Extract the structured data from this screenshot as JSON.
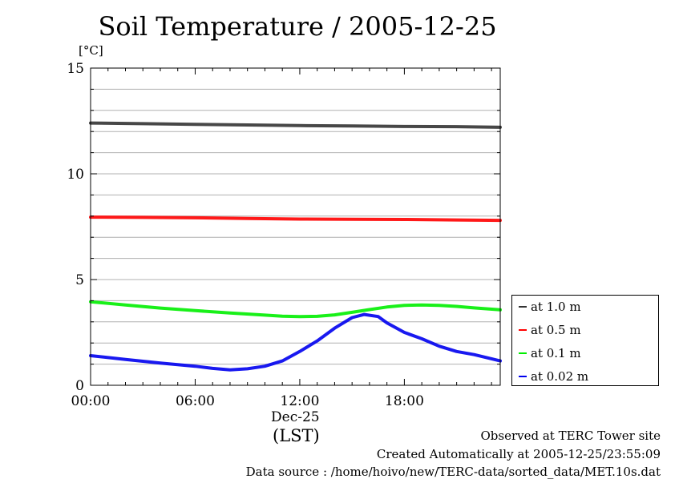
{
  "chart_data": {
    "type": "line",
    "title": "Soil Temperature / 2005-12-25",
    "ylabel": "[°C]",
    "xlabel": "(LST)",
    "xdate": "Dec-25",
    "ylim": [
      0,
      15
    ],
    "xlim": [
      0,
      23.5
    ],
    "yticks": [
      0,
      5,
      10,
      15
    ],
    "xticks": [
      {
        "value": 0,
        "label": "00:00"
      },
      {
        "value": 6,
        "label": "06:00"
      },
      {
        "value": 12,
        "label": "12:00"
      },
      {
        "value": 18,
        "label": "18:00"
      }
    ],
    "grid": true,
    "legend_position": "right",
    "series": [
      {
        "name": "at 1.0 m",
        "color": "#333333",
        "x": [
          0,
          3,
          6,
          9,
          12,
          15,
          18,
          21,
          23.5
        ],
        "y": [
          12.4,
          12.37,
          12.34,
          12.31,
          12.28,
          12.26,
          12.24,
          12.23,
          12.2
        ]
      },
      {
        "name": "at 0.5 m",
        "color": "#ff0000",
        "x": [
          0,
          3,
          6,
          9,
          12,
          15,
          18,
          21,
          23.5
        ],
        "y": [
          7.95,
          7.94,
          7.92,
          7.89,
          7.86,
          7.85,
          7.84,
          7.82,
          7.8
        ]
      },
      {
        "name": "at 0.1 m",
        "color": "#00ee00",
        "x": [
          0,
          2,
          4,
          6,
          8,
          10,
          11,
          12,
          13,
          14,
          15,
          16,
          17,
          18,
          19,
          20,
          21,
          22,
          23.5
        ],
        "y": [
          3.95,
          3.8,
          3.65,
          3.53,
          3.42,
          3.32,
          3.27,
          3.25,
          3.26,
          3.33,
          3.45,
          3.58,
          3.7,
          3.78,
          3.8,
          3.78,
          3.73,
          3.66,
          3.57
        ]
      },
      {
        "name": "at 0.02 m",
        "color": "#0000ee",
        "x": [
          0,
          2,
          4,
          6,
          7,
          8,
          9,
          10,
          11,
          12,
          13,
          14,
          15,
          15.7,
          16.5,
          17,
          18,
          19,
          20,
          21,
          22,
          23.5
        ],
        "y": [
          1.4,
          1.22,
          1.05,
          0.9,
          0.8,
          0.73,
          0.78,
          0.9,
          1.15,
          1.6,
          2.1,
          2.7,
          3.2,
          3.35,
          3.25,
          2.95,
          2.5,
          2.2,
          1.85,
          1.6,
          1.45,
          1.15
        ]
      }
    ]
  },
  "footer": {
    "line1": "Observed at TERC Tower site",
    "line2": "Created Automatically at 2005-12-25/23:55:09",
    "line3": "Data source : /home/hoivo/new/TERC-data/sorted_data/MET.10s.dat"
  }
}
